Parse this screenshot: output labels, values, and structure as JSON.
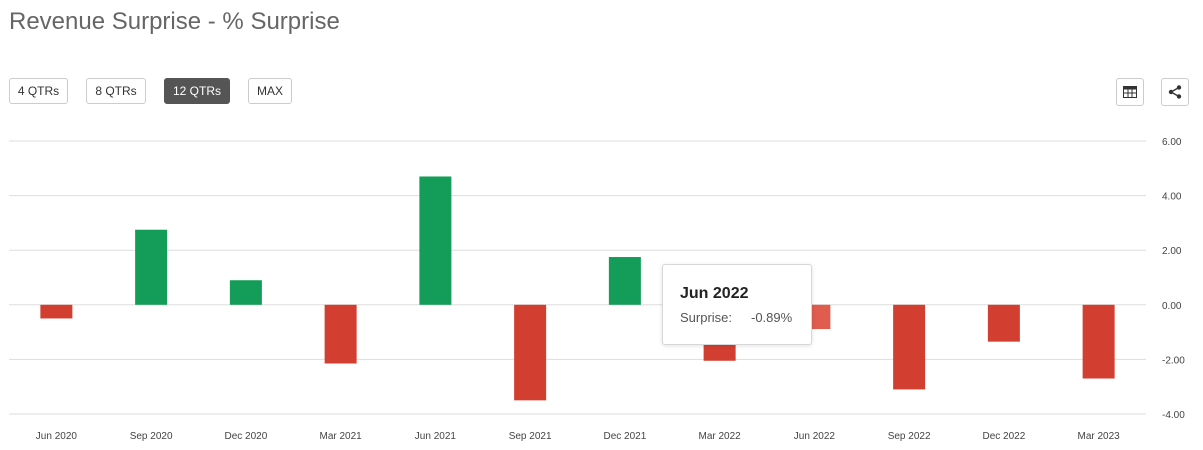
{
  "title": "Revenue Surprise - % Surprise",
  "range_buttons": [
    {
      "label": "4 QTRs",
      "active": false
    },
    {
      "label": "8 QTRs",
      "active": false
    },
    {
      "label": "12 QTRs",
      "active": true
    },
    {
      "label": "MAX",
      "active": false
    }
  ],
  "toolbar": {
    "table_icon": "table-icon",
    "share_icon": "share-icon"
  },
  "tooltip": {
    "title": "Jun 2022",
    "label": "Surprise:",
    "value": "-0.89%"
  },
  "colors": {
    "positive": "#149d58",
    "negative": "#d23f31",
    "highlight": "#e05c4f",
    "grid": "#dddddd"
  },
  "chart_data": {
    "type": "bar",
    "categories": [
      "Jun 2020",
      "Sep 2020",
      "Dec 2020",
      "Mar 2021",
      "Jun 2021",
      "Sep 2021",
      "Dec 2021",
      "Mar 2022",
      "Jun 2022",
      "Sep 2022",
      "Dec 2022",
      "Mar 2023"
    ],
    "values": [
      -0.5,
      2.75,
      0.9,
      -2.15,
      4.7,
      -3.5,
      1.75,
      -2.05,
      -0.89,
      -3.1,
      -1.35,
      -2.7
    ],
    "ylim": [
      -4,
      6
    ],
    "yticks": [
      "6.00",
      "4.00",
      "2.00",
      "0.00",
      "-2.00",
      "-4.00"
    ],
    "grid": true,
    "legend": "none"
  }
}
